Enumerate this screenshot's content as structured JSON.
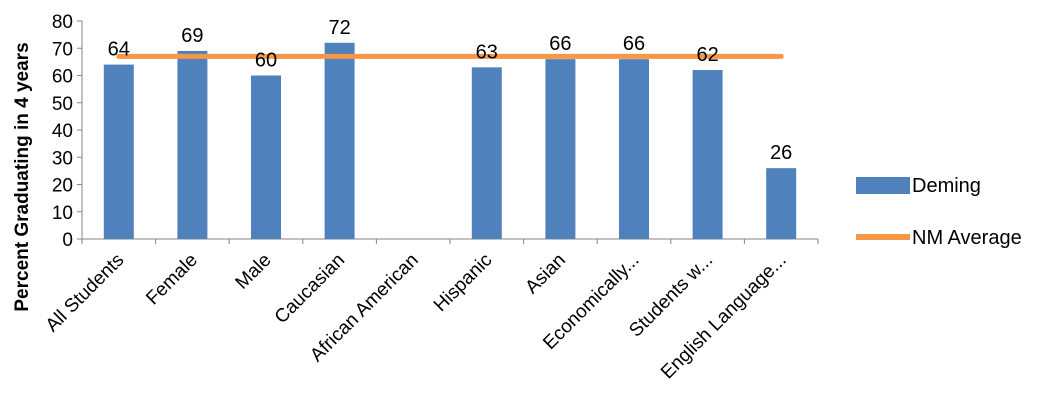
{
  "chart_data": {
    "type": "bar",
    "title": "",
    "xlabel": "",
    "ylabel": "Percent Graduating in 4 years",
    "ylim": [
      0,
      80
    ],
    "yticks": [
      0,
      10,
      20,
      30,
      40,
      50,
      60,
      70,
      80
    ],
    "grid": false,
    "legend_position": "right",
    "categories": [
      "All Students",
      "Female",
      "Male",
      "Caucasian",
      "African American",
      "Hispanic",
      "Asian",
      "Economically...",
      "Students w...",
      "English Language..."
    ],
    "series": [
      {
        "name": "Deming",
        "type": "bar",
        "color": "#4F81BD",
        "values": [
          64,
          69,
          60,
          72,
          null,
          63,
          66,
          66,
          62,
          26
        ],
        "data_labels": [
          "64",
          "69",
          "60",
          "72",
          "",
          "63",
          "66",
          "66",
          "62",
          "26"
        ]
      },
      {
        "name": "NM Average",
        "type": "line",
        "color": "#F79646",
        "values": [
          67,
          67,
          67,
          67,
          67,
          67,
          67,
          67,
          67,
          67
        ]
      }
    ]
  }
}
